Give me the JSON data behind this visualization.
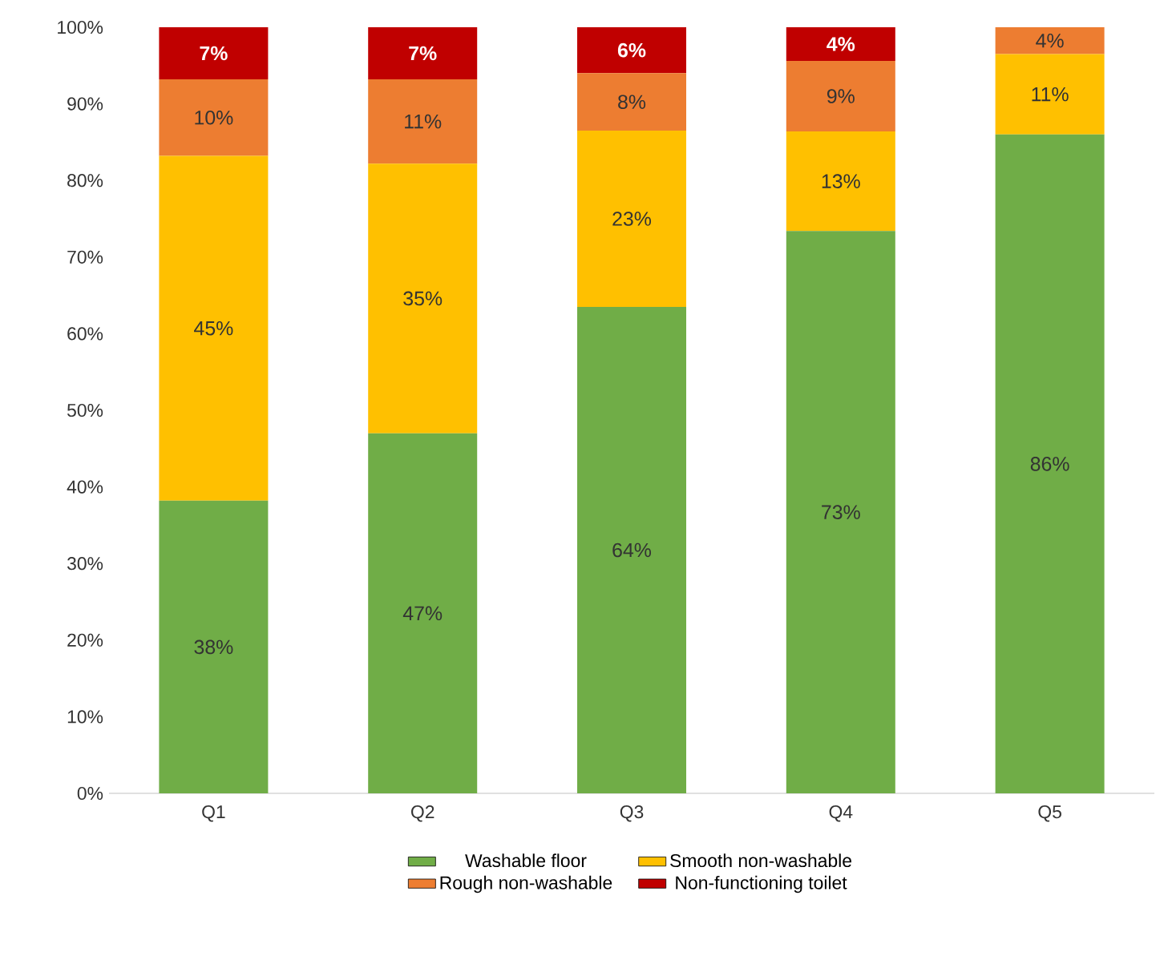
{
  "chart_data": {
    "type": "bar",
    "stacked": true,
    "legend": "bottom",
    "categories": [
      "Q1",
      "Q2",
      "Q3",
      "Q4",
      "Q5"
    ],
    "ylim": [
      0,
      100
    ],
    "yticks": [
      {
        "value": 0,
        "label": "0%"
      },
      {
        "value": 10,
        "label": "10%"
      },
      {
        "value": 20,
        "label": "20%"
      },
      {
        "value": 30,
        "label": "30%"
      },
      {
        "value": 40,
        "label": "40%"
      },
      {
        "value": 50,
        "label": "50%"
      },
      {
        "value": 60,
        "label": "60%"
      },
      {
        "value": 70,
        "label": "70%"
      },
      {
        "value": 80,
        "label": "80%"
      },
      {
        "value": 90,
        "label": "90%"
      },
      {
        "value": 100,
        "label": "100%"
      }
    ],
    "series": [
      {
        "name": "Washable floor",
        "color": "#70ad47",
        "values": [
          38.2,
          47,
          63.5,
          73.4,
          86
        ],
        "value_labels": [
          "38%",
          "47%",
          "64%",
          "73%",
          "86%"
        ]
      },
      {
        "name": "Smooth non-washable",
        "color": "#ffc000",
        "values": [
          45,
          35.2,
          23,
          13,
          10.5
        ],
        "value_labels": [
          "45%",
          "35%",
          "23%",
          "13%",
          "11%"
        ]
      },
      {
        "name": "Rough non-washable",
        "color": "#ed7d31",
        "values": [
          10,
          11,
          7.5,
          9.2,
          3.5
        ],
        "value_labels": [
          "10%",
          "11%",
          "8%",
          "9%",
          "4%"
        ]
      },
      {
        "name": "Non-functioning toilet",
        "color": "#c00000",
        "values": [
          6.8,
          6.8,
          6,
          4.4,
          0
        ],
        "value_labels": [
          "7%",
          "7%",
          "6%",
          "4%",
          null
        ]
      }
    ]
  }
}
